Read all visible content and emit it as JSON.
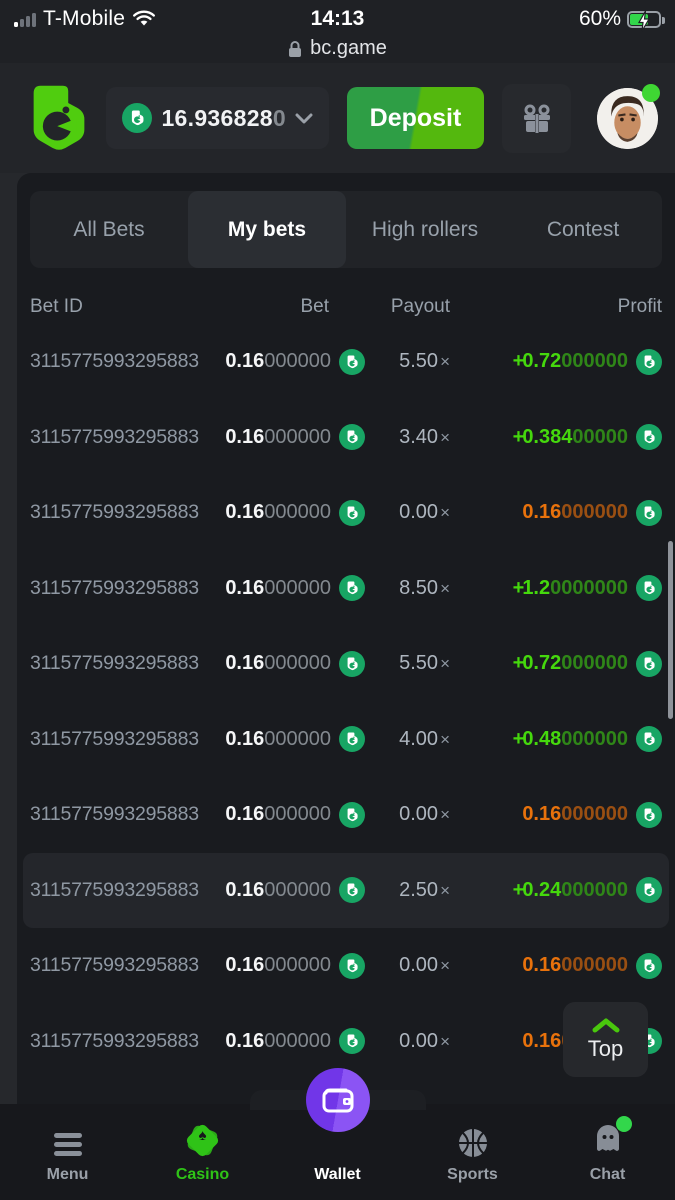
{
  "status_bar": {
    "carrier": "T-Mobile",
    "time": "14:13",
    "battery": "60%"
  },
  "url_bar": {
    "domain": "bc.game"
  },
  "header": {
    "balance": "16.936828",
    "balance_dim": "0",
    "deposit_label": "Deposit"
  },
  "tabs": {
    "items": [
      {
        "label": "All Bets"
      },
      {
        "label": "My bets"
      },
      {
        "label": "High rollers"
      },
      {
        "label": "Contest"
      }
    ],
    "active_index": 1
  },
  "table": {
    "headers": [
      "Bet ID",
      "Bet",
      "Payout",
      "Profit"
    ],
    "multiplier": "×",
    "rows": [
      {
        "id": "3115775993295883",
        "bet": "0.16",
        "bet_zeros": "000000",
        "payout": "5.50",
        "sign": "+",
        "profit": "0.72",
        "profit_zeros": "000000",
        "result": "win",
        "highlighted": false
      },
      {
        "id": "3115775993295883",
        "bet": "0.16",
        "bet_zeros": "000000",
        "payout": "3.40",
        "sign": "+",
        "profit": "0.384",
        "profit_zeros": "00000",
        "result": "win",
        "highlighted": false
      },
      {
        "id": "3115775993295883",
        "bet": "0.16",
        "bet_zeros": "000000",
        "payout": "0.00",
        "sign": "",
        "profit": "0.16",
        "profit_zeros": "000000",
        "result": "loss",
        "highlighted": false
      },
      {
        "id": "3115775993295883",
        "bet": "0.16",
        "bet_zeros": "000000",
        "payout": "8.50",
        "sign": "+",
        "profit": "1.2",
        "profit_zeros": "0000000",
        "result": "win",
        "highlighted": false
      },
      {
        "id": "3115775993295883",
        "bet": "0.16",
        "bet_zeros": "000000",
        "payout": "5.50",
        "sign": "+",
        "profit": "0.72",
        "profit_zeros": "000000",
        "result": "win",
        "highlighted": false
      },
      {
        "id": "3115775993295883",
        "bet": "0.16",
        "bet_zeros": "000000",
        "payout": "4.00",
        "sign": "+",
        "profit": "0.48",
        "profit_zeros": "000000",
        "result": "win",
        "highlighted": false
      },
      {
        "id": "3115775993295883",
        "bet": "0.16",
        "bet_zeros": "000000",
        "payout": "0.00",
        "sign": "",
        "profit": "0.16",
        "profit_zeros": "000000",
        "result": "loss",
        "highlighted": false
      },
      {
        "id": "3115775993295883",
        "bet": "0.16",
        "bet_zeros": "000000",
        "payout": "2.50",
        "sign": "+",
        "profit": "0.24",
        "profit_zeros": "000000",
        "result": "win",
        "highlighted": true
      },
      {
        "id": "3115775993295883",
        "bet": "0.16",
        "bet_zeros": "000000",
        "payout": "0.00",
        "sign": "",
        "profit": "0.16",
        "profit_zeros": "000000",
        "result": "loss",
        "highlighted": false
      },
      {
        "id": "3115775993295883",
        "bet": "0.16",
        "bet_zeros": "000000",
        "payout": "0.00",
        "sign": "",
        "profit": "0.16",
        "profit_zeros": "000000",
        "result": "loss",
        "highlighted": false
      }
    ]
  },
  "top_button": {
    "label": "Top"
  },
  "nav": {
    "items": [
      {
        "label": "Menu"
      },
      {
        "label": "Casino"
      },
      {
        "label": "Wallet"
      },
      {
        "label": "Sports"
      },
      {
        "label": "Chat"
      }
    ]
  },
  "colors": {
    "win_green": "#45d80d",
    "loss_orange": "#e8720c",
    "coin_green": "#18a564",
    "logo_green": "#50cd0f",
    "wallet_purple": "#7c42f5"
  }
}
